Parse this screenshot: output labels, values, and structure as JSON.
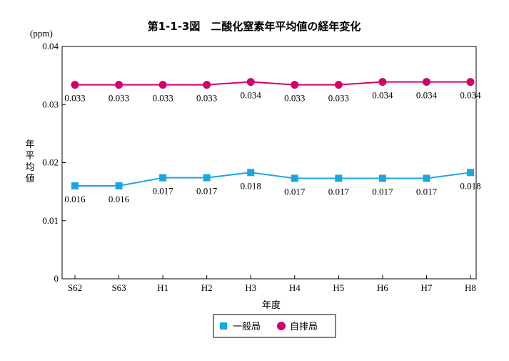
{
  "chart_data": {
    "type": "line",
    "title": "第1-1-3図　二酸化窒素年平均値の経年変化",
    "unit_label": "(ppm)",
    "ylabel": "年平均値",
    "xlabel": "年度",
    "categories": [
      "S62",
      "S63",
      "H1",
      "H2",
      "H3",
      "H4",
      "H5",
      "H6",
      "H7",
      "H8"
    ],
    "ylim": [
      0,
      0.04
    ],
    "yticks": [
      "0",
      "0.01",
      "0.02",
      "0.03",
      "0.04"
    ],
    "ytick_values": [
      0,
      0.01,
      0.02,
      0.03,
      0.04
    ],
    "grid": false,
    "legend_position": "bottom-center",
    "series": [
      {
        "name": "一般局",
        "marker": "square",
        "color": "#1aa7e0",
        "values": [
          0.016,
          0.016,
          0.0174,
          0.0174,
          0.0183,
          0.0173,
          0.0173,
          0.0173,
          0.0173,
          0.0183
        ],
        "labels": [
          "0.016",
          "0.016",
          "0.017",
          "0.017",
          "0.018",
          "0.017",
          "0.017",
          "0.017",
          "0.017",
          "0.018"
        ]
      },
      {
        "name": "自排局",
        "marker": "circle",
        "color": "#d4006a",
        "values": [
          0.0334,
          0.0334,
          0.0334,
          0.0334,
          0.0339,
          0.0334,
          0.0334,
          0.0339,
          0.0339,
          0.0339
        ],
        "labels": [
          "0.033",
          "0.033",
          "0.033",
          "0.033",
          "0.034",
          "0.033",
          "0.033",
          "0.034",
          "0.034",
          "0.034"
        ]
      }
    ]
  }
}
